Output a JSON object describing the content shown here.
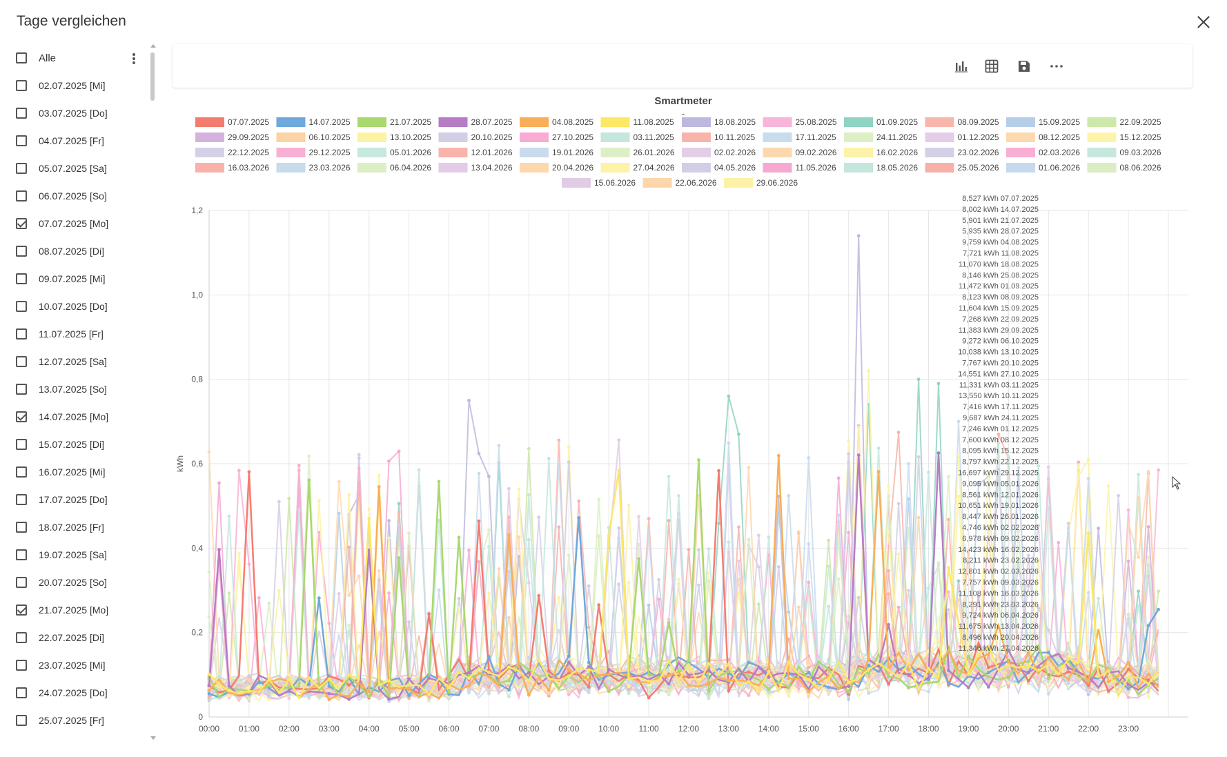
{
  "dialog": {
    "title": "Tage vergleichen",
    "close_icon": "close-icon"
  },
  "sidebar": {
    "all_label": "Alle",
    "items": [
      {
        "label": "02.07.2025 [Mi]",
        "checked": false
      },
      {
        "label": "03.07.2025 [Do]",
        "checked": false
      },
      {
        "label": "04.07.2025 [Fr]",
        "checked": false
      },
      {
        "label": "05.07.2025 [Sa]",
        "checked": false
      },
      {
        "label": "06.07.2025 [So]",
        "checked": false
      },
      {
        "label": "07.07.2025 [Mo]",
        "checked": true
      },
      {
        "label": "08.07.2025 [Di]",
        "checked": false
      },
      {
        "label": "09.07.2025 [Mi]",
        "checked": false
      },
      {
        "label": "10.07.2025 [Do]",
        "checked": false
      },
      {
        "label": "11.07.2025 [Fr]",
        "checked": false
      },
      {
        "label": "12.07.2025 [Sa]",
        "checked": false
      },
      {
        "label": "13.07.2025 [So]",
        "checked": false
      },
      {
        "label": "14.07.2025 [Mo]",
        "checked": true
      },
      {
        "label": "15.07.2025 [Di]",
        "checked": false
      },
      {
        "label": "16.07.2025 [Mi]",
        "checked": false
      },
      {
        "label": "17.07.2025 [Do]",
        "checked": false
      },
      {
        "label": "18.07.2025 [Fr]",
        "checked": false
      },
      {
        "label": "19.07.2025 [Sa]",
        "checked": false
      },
      {
        "label": "20.07.2025 [So]",
        "checked": false
      },
      {
        "label": "21.07.2025 [Mo]",
        "checked": true
      },
      {
        "label": "22.07.2025 [Di]",
        "checked": false
      },
      {
        "label": "23.07.2025 [Mi]",
        "checked": false
      },
      {
        "label": "24.07.2025 [Do]",
        "checked": false
      },
      {
        "label": "25.07.2025 [Fr]",
        "checked": false
      }
    ]
  },
  "toolbar": {
    "buttons": [
      {
        "name": "bar-chart-button",
        "icon": "bar-chart-icon"
      },
      {
        "name": "table-view-button",
        "icon": "grid-icon"
      },
      {
        "name": "save-button",
        "icon": "save-icon"
      },
      {
        "name": "more-options-button",
        "icon": "more-horizontal-icon"
      }
    ]
  },
  "chart_data": {
    "type": "line",
    "title": "Smartmeter",
    "subtitle": "-",
    "ylabel": "kWh",
    "xlabel": "",
    "ylim": [
      0,
      1.2
    ],
    "yticks": [
      "0",
      "0,2",
      "0,4",
      "0,6",
      "0,8",
      "1,0",
      "1,2"
    ],
    "x_ticks": [
      "00:00",
      "01:00",
      "02:00",
      "03:00",
      "04:00",
      "05:00",
      "06:00",
      "07:00",
      "08:00",
      "09:00",
      "10:00",
      "11:00",
      "12:00",
      "13:00",
      "14:00",
      "15:00",
      "16:00",
      "17:00",
      "18:00",
      "19:00",
      "20:00",
      "21:00",
      "22:00",
      "23:00"
    ],
    "grid": true,
    "legend_position": "top",
    "series": [
      {
        "name": "07.07.2025",
        "color": "#f47c6e",
        "total": "8,527 kWh 07.07.2025",
        "highlight": true,
        "seed": 1
      },
      {
        "name": "14.07.2025",
        "color": "#6fa8dc",
        "total": "8,002 kWh 14.07.2025",
        "highlight": true,
        "seed": 2
      },
      {
        "name": "21.07.2025",
        "color": "#a8d86e",
        "total": "5,901 kWh 21.07.2025",
        "highlight": true,
        "seed": 3
      },
      {
        "name": "28.07.2025",
        "color": "#b77cc4",
        "total": "5,935 kWh 28.07.2025",
        "highlight": true,
        "seed": 4
      },
      {
        "name": "04.08.2025",
        "color": "#f9ae58",
        "total": "9,759 kWh 04.08.2025",
        "highlight": true,
        "seed": 5
      },
      {
        "name": "11.08.2025",
        "color": "#fce865",
        "total": "7,721 kWh 11.08.2025",
        "highlight": true,
        "seed": 6
      },
      {
        "name": "18.08.2025",
        "color": "#bdb8dd",
        "total": "11,070 kWh 18.08.2025",
        "seed": 7
      },
      {
        "name": "25.08.2025",
        "color": "#f7b5d9",
        "total": "8,146 kWh 25.08.2025",
        "seed": 8
      },
      {
        "name": "01.09.2025",
        "color": "#8fd3c3",
        "total": "11,472 kWh 01.09.2025",
        "seed": 9
      },
      {
        "name": "08.09.2025",
        "color": "#f8b6ad",
        "total": "8,123 kWh 08.09.2025",
        "seed": 10
      },
      {
        "name": "15.09.2025",
        "color": "#b6cfe8",
        "total": "11,604 kWh 15.09.2025",
        "seed": 11
      },
      {
        "name": "22.09.2025",
        "color": "#cde8a8",
        "total": "7,268 kWh 22.09.2025",
        "seed": 12
      },
      {
        "name": "29.09.2025",
        "color": "#d5b2dd",
        "total": "11,383 kWh 29.09.2025",
        "seed": 13
      },
      {
        "name": "06.10.2025",
        "color": "#fcd3a4",
        "total": "9,272 kWh 06.10.2025",
        "seed": 14
      },
      {
        "name": "13.10.2025",
        "color": "#fbf2a4",
        "total": "10,038 kWh 13.10.2025",
        "seed": 15
      },
      {
        "name": "20.10.2025",
        "color": "#d2cee6",
        "total": "7,767 kWh 20.10.2025",
        "seed": 16
      },
      {
        "name": "27.10.2025",
        "color": "#f9abd3",
        "total": "14,551 kWh 27.10.2025",
        "seed": 17
      },
      {
        "name": "03.11.2025",
        "color": "#c4e6de",
        "total": "11,331 kWh 03.11.2025",
        "seed": 18
      },
      {
        "name": "10.11.2025",
        "color": "#f8b3ab",
        "total": "13,550 kWh 10.11.2025",
        "seed": 19
      },
      {
        "name": "17.11.2025",
        "color": "#c8dcee",
        "total": "7,416 kWh 17.11.2025",
        "seed": 20
      },
      {
        "name": "24.11.2025",
        "color": "#dcefc5",
        "total": "9,687 kWh 24.11.2025",
        "seed": 21
      },
      {
        "name": "01.12.2025",
        "color": "#e3cde8",
        "total": "7,246 kWh 01.12.2025",
        "seed": 22
      },
      {
        "name": "08.12.2025",
        "color": "#fdd9b0",
        "total": "7,600 kWh 08.12.2025",
        "seed": 23
      },
      {
        "name": "15.12.2025",
        "color": "#fdf4aa",
        "total": "8,095 kWh 15.12.2025",
        "seed": 24
      },
      {
        "name": "22.12.2025",
        "color": "#d4d0e8",
        "total": "8,797 kWh 22.12.2025",
        "seed": 25
      },
      {
        "name": "29.12.2025",
        "color": "#f9b0d4",
        "total": "16,697 kWh 29.12.2025",
        "seed": 26
      },
      {
        "name": "05.01.2026",
        "color": "#c6e8df",
        "total": "9,095 kWh 05.01.2026",
        "seed": 27
      },
      {
        "name": "12.01.2026",
        "color": "#f8b4ab",
        "total": "8,561 kWh 12.01.2026",
        "seed": 28
      },
      {
        "name": "19.01.2026",
        "color": "#c9dbee",
        "total": "10,651 kWh 19.01.2026",
        "seed": 29
      },
      {
        "name": "26.01.2026",
        "color": "#dcefc6",
        "total": "8,447 kWh 26.01.2026",
        "seed": 30
      },
      {
        "name": "02.02.2026",
        "color": "#e3cde7",
        "total": "4,746 kWh 02.02.2026",
        "seed": 31
      },
      {
        "name": "09.02.2026",
        "color": "#fdd8ae",
        "total": "6,978 kWh 09.02.2026",
        "seed": 32
      },
      {
        "name": "16.02.2026",
        "color": "#fdf3a8",
        "total": "14,423 kWh 16.02.2026",
        "seed": 33
      },
      {
        "name": "23.02.2026",
        "color": "#d3cfe7",
        "total": "8,211 kWh 23.02.2026",
        "seed": 34
      },
      {
        "name": "02.03.2026",
        "color": "#f9afd3",
        "total": "12,801 kWh 02.03.2026",
        "seed": 35
      },
      {
        "name": "09.03.2026",
        "color": "#c5e7de",
        "total": "7,757 kWh 09.03.2026",
        "seed": 36
      },
      {
        "name": "16.03.2026",
        "color": "#f8b2aa",
        "total": "11,108 kWh 16.03.2026",
        "seed": 37
      },
      {
        "name": "23.03.2026",
        "color": "#c8dbed",
        "total": "8,291 kWh 23.03.2026",
        "seed": 38
      },
      {
        "name": "06.04.2026",
        "color": "#dbeec4",
        "total": "9,724 kWh 06.04.2026",
        "seed": 39
      },
      {
        "name": "13.04.2026",
        "color": "#e2cce6",
        "total": "11,675 kWh 13.04.2026",
        "seed": 40
      },
      {
        "name": "20.04.2026",
        "color": "#fdd7ad",
        "total": "8,496 kWh 20.04.2026",
        "seed": 41
      },
      {
        "name": "27.04.2026",
        "color": "#fdf2a7",
        "total": "11,346 kWh 27.04.2026",
        "seed": 42
      },
      {
        "name": "04.05.2026",
        "color": "#d2cee6",
        "total": "",
        "seed": 43
      },
      {
        "name": "11.05.2026",
        "color": "#f7a8d0",
        "total": "",
        "seed": 44
      },
      {
        "name": "18.05.2026",
        "color": "#c4e6dd",
        "total": "",
        "seed": 45
      },
      {
        "name": "25.05.2026",
        "color": "#f7b0a8",
        "total": "",
        "seed": 46
      },
      {
        "name": "01.06.2026",
        "color": "#c7daed",
        "total": "",
        "seed": 47
      },
      {
        "name": "08.06.2026",
        "color": "#daedc3",
        "total": "",
        "seed": 48
      },
      {
        "name": "15.06.2026",
        "color": "#e1cbe5",
        "total": "",
        "seed": 49
      },
      {
        "name": "22.06.2026",
        "color": "#fdd6ab",
        "total": "",
        "seed": 50
      },
      {
        "name": "29.06.2026",
        "color": "#fdf1a6",
        "total": "",
        "seed": 51
      }
    ]
  }
}
